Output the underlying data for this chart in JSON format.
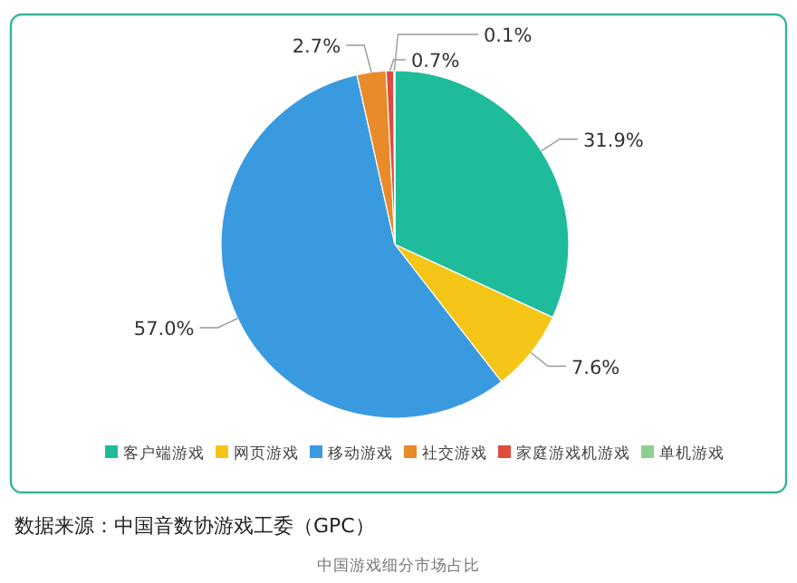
{
  "chart_data": {
    "type": "pie",
    "categories": [
      "客户端游戏",
      "网页游戏",
      "移动游戏",
      "社交游戏",
      "家庭游戏机游戏",
      "单机游戏"
    ],
    "values": [
      31.9,
      7.6,
      57.0,
      2.7,
      0.7,
      0.1
    ],
    "value_labels": [
      "31.9%",
      "7.6%",
      "57.0%",
      "2.7%",
      "0.7%",
      "0.1%"
    ],
    "colors": [
      "#1fbc9c",
      "#f5c518",
      "#3a9ae0",
      "#e98a2b",
      "#e04b3c",
      "#8ecf8e"
    ],
    "legend": "bottom",
    "annotations": [
      "数据来源：中国音数协游戏工委（GPC）",
      "中国游戏细分市场占比"
    ]
  }
}
